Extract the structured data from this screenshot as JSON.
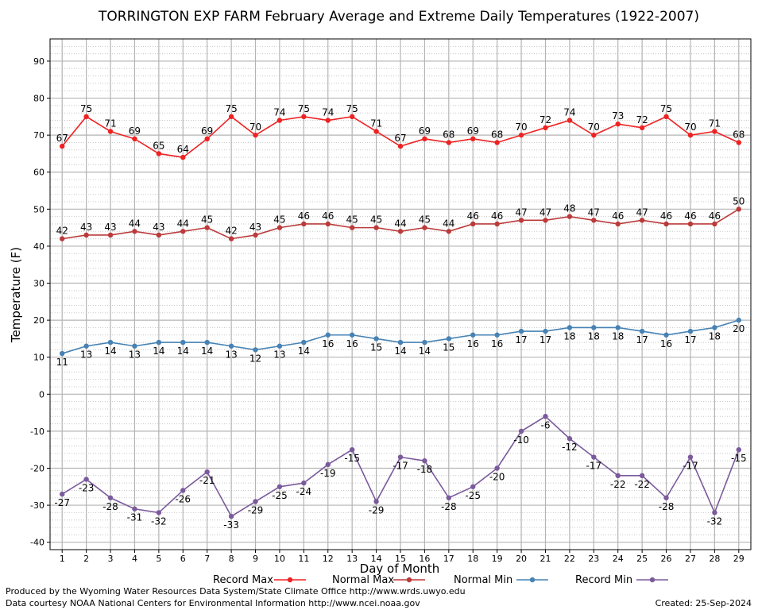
{
  "chart_data": {
    "type": "line",
    "title": "TORRINGTON EXP FARM February Average and Extreme Daily Temperatures (1922-2007)",
    "xlabel": "Day of Month",
    "ylabel": "Temperature (F)",
    "x": [
      1,
      2,
      3,
      4,
      5,
      6,
      7,
      8,
      9,
      10,
      11,
      12,
      13,
      14,
      15,
      16,
      17,
      18,
      19,
      20,
      21,
      22,
      23,
      24,
      25,
      26,
      27,
      28,
      29
    ],
    "xlim": [
      0.5,
      29.5
    ],
    "ylim": [
      -42,
      96
    ],
    "yticks": [
      -40,
      -30,
      -20,
      -10,
      0,
      10,
      20,
      30,
      40,
      50,
      60,
      70,
      80,
      90
    ],
    "grid": true,
    "legend_position": "bottom",
    "series": [
      {
        "name": "Record Max",
        "color": "#ee2222",
        "label_pos": "above",
        "values": [
          67,
          75,
          71,
          69,
          65,
          64,
          69,
          75,
          70,
          74,
          75,
          74,
          75,
          71,
          67,
          69,
          68,
          69,
          68,
          70,
          72,
          74,
          70,
          73,
          72,
          75,
          70,
          71,
          68
        ]
      },
      {
        "name": "Normal Max",
        "color": "#bb3a3a",
        "label_pos": "above",
        "values": [
          42,
          43,
          43,
          44,
          43,
          44,
          45,
          42,
          43,
          45,
          46,
          46,
          45,
          45,
          44,
          45,
          44,
          46,
          46,
          47,
          47,
          48,
          47,
          46,
          47,
          46,
          46,
          46,
          50
        ]
      },
      {
        "name": "Normal Min",
        "color": "#4682b4",
        "label_pos": "below",
        "values": [
          11,
          13,
          14,
          13,
          14,
          14,
          14,
          13,
          12,
          13,
          14,
          16,
          16,
          15,
          14,
          14,
          15,
          16,
          16,
          17,
          17,
          18,
          18,
          18,
          17,
          16,
          17,
          18,
          20
        ]
      },
      {
        "name": "Record Min",
        "color": "#7b5a9c",
        "label_pos": "below",
        "values": [
          -27,
          -23,
          -28,
          -31,
          -32,
          -26,
          -21,
          -33,
          -29,
          -25,
          -24,
          -19,
          -15,
          -29,
          -17,
          -18,
          -28,
          -25,
          -20,
          -10,
          -6,
          -12,
          -17,
          -22,
          -22,
          -28,
          -17,
          -32,
          -15
        ]
      }
    ]
  },
  "footer": {
    "produced_by": "Produced by the Wyoming Water Resources Data System/State Climate Office http://www.wrds.uwyo.edu",
    "courtesy": "Data courtesy NOAA National Centers for Environmental Information http://www.ncei.noaa.gov",
    "created": "Created:  25-Sep-2024"
  }
}
